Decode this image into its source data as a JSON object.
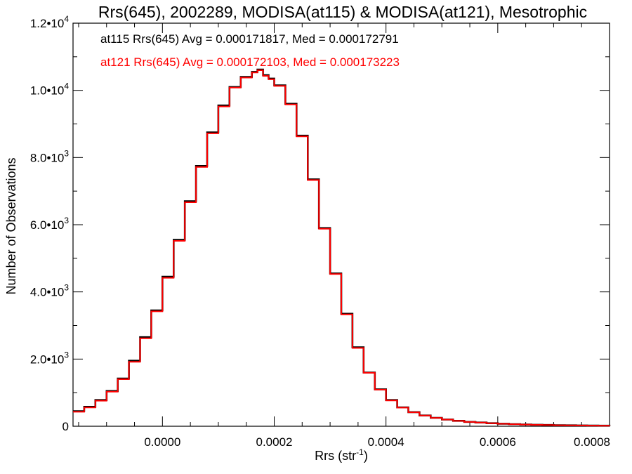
{
  "chart_data": {
    "type": "histogram-step",
    "title": "Rrs(645), 2002289, MODISA(at115) & MODISA(at121), Mesotrophic",
    "xlabel": "Rrs (str⁻¹)",
    "ylabel": "Number of Observations",
    "xlim": [
      -0.00016,
      0.0008
    ],
    "ylim": [
      0,
      12000
    ],
    "x_ticks": [
      0.0,
      0.0002,
      0.0004,
      0.0006,
      0.0008
    ],
    "x_tick_labels": [
      "0.0000",
      "0.0002",
      "0.0004",
      "0.0006",
      "0.0008"
    ],
    "y_ticks": [
      0,
      2000,
      4000,
      6000,
      8000,
      10000,
      12000
    ],
    "y_tick_labels": [
      {
        "mant": "0",
        "exp": ""
      },
      {
        "mant": "2.0•10",
        "exp": "3"
      },
      {
        "mant": "4.0•10",
        "exp": "3"
      },
      {
        "mant": "6.0•10",
        "exp": "3"
      },
      {
        "mant": "8.0•10",
        "exp": "3"
      },
      {
        "mant": "1.0•10",
        "exp": "4"
      },
      {
        "mant": "1.2•10",
        "exp": "4"
      }
    ],
    "annotations": [
      {
        "text": "at115 Rrs(645) Avg = 0.000171817, Med = 0.000172791",
        "color": "#000000"
      },
      {
        "text": "at121 Rrs(645) Avg = 0.000172103, Med = 0.000173223",
        "color": "#ff0000"
      }
    ],
    "series": [
      {
        "color": "#000000",
        "x": [
          -0.00016,
          -0.00014,
          -0.00012,
          -0.0001,
          -8e-05,
          -6e-05,
          -4e-05,
          -2e-05,
          0.0,
          2e-05,
          4e-05,
          6e-05,
          8e-05,
          0.0001,
          0.00012,
          0.00014,
          0.00016,
          0.00017,
          0.00018,
          0.00019,
          0.0002,
          0.00022,
          0.00024,
          0.00026,
          0.00028,
          0.0003,
          0.00032,
          0.00034,
          0.00036,
          0.00038,
          0.0004,
          0.00042,
          0.00044,
          0.00046,
          0.00048,
          0.0005,
          0.00052,
          0.00054,
          0.00056,
          0.00058,
          0.0006,
          0.00062,
          0.00064,
          0.00066,
          0.00068,
          0.0007,
          0.00072,
          0.00074,
          0.00076,
          0.00078,
          0.0008
        ],
        "y": [
          450,
          580,
          780,
          1050,
          1420,
          1950,
          2650,
          3450,
          4450,
          5550,
          6700,
          7750,
          8750,
          9550,
          10100,
          10400,
          10550,
          10620,
          10450,
          10350,
          10150,
          9600,
          8650,
          7350,
          5900,
          4550,
          3350,
          2350,
          1600,
          1100,
          780,
          560,
          420,
          320,
          250,
          200,
          160,
          130,
          110,
          90,
          75,
          62,
          52,
          44,
          38,
          32,
          28,
          24,
          20,
          17,
          15
        ]
      },
      {
        "color": "#ff0000",
        "x": [
          -0.00016,
          -0.00014,
          -0.00012,
          -0.0001,
          -8e-05,
          -6e-05,
          -4e-05,
          -2e-05,
          0.0,
          2e-05,
          4e-05,
          6e-05,
          8e-05,
          0.0001,
          0.00012,
          0.00014,
          0.00016,
          0.00017,
          0.00018,
          0.00019,
          0.0002,
          0.00022,
          0.00024,
          0.00026,
          0.00028,
          0.0003,
          0.00032,
          0.00034,
          0.00036,
          0.00038,
          0.0004,
          0.00042,
          0.00044,
          0.00046,
          0.00048,
          0.0005,
          0.00052,
          0.00054,
          0.00056,
          0.00058,
          0.0006,
          0.00062,
          0.00064,
          0.00066,
          0.00068,
          0.0007,
          0.00072,
          0.00074,
          0.00076,
          0.00078,
          0.0008
        ],
        "y": [
          430,
          560,
          760,
          1030,
          1400,
          1920,
          2620,
          3420,
          4420,
          5520,
          6670,
          7720,
          8720,
          9520,
          10080,
          10380,
          10530,
          10600,
          10430,
          10330,
          10130,
          9580,
          8630,
          7330,
          5880,
          4530,
          3330,
          2330,
          1590,
          1090,
          770,
          555,
          415,
          318,
          248,
          198,
          158,
          128,
          108,
          88,
          73,
          60,
          50,
          42,
          36,
          30,
          26,
          22,
          18,
          15,
          13
        ]
      }
    ]
  }
}
